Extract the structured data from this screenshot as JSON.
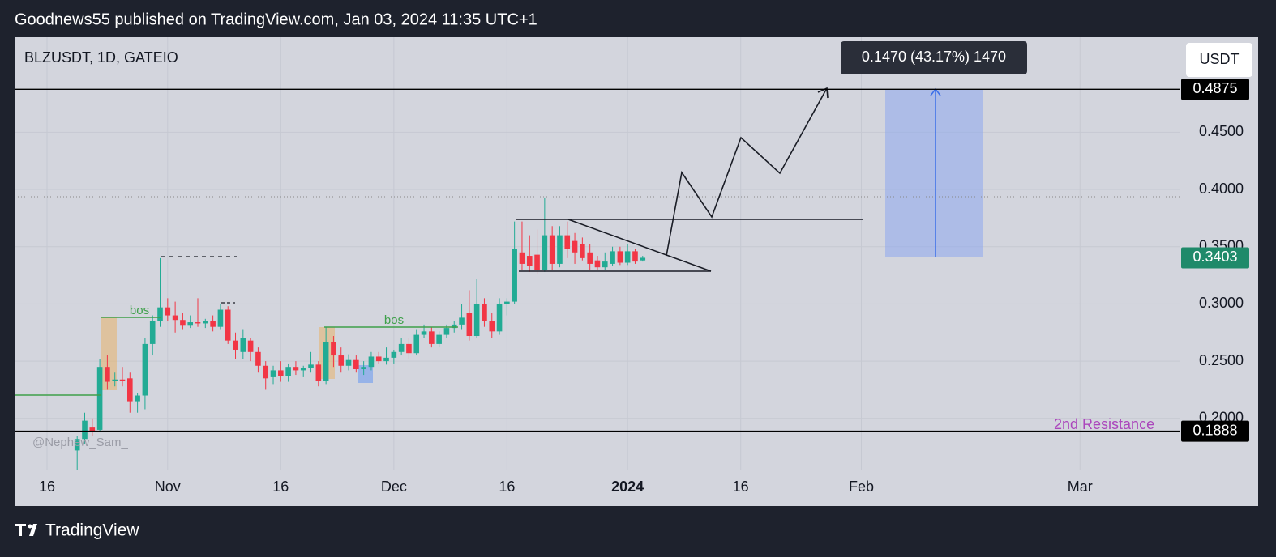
{
  "header": {
    "publisher": "Goodnews55 published on TradingView.com, Jan 03, 2024 11:35 UTC+1"
  },
  "chart_data": {
    "type": "candlestick",
    "title": "BLZUSDT, 1D, GATEIO",
    "currency_button": "USDT",
    "x": [
      4,
      5,
      6,
      7,
      8,
      9,
      10,
      11,
      12,
      13,
      14,
      15,
      16,
      17,
      18,
      19,
      20,
      21,
      22,
      23,
      24,
      25,
      26,
      27,
      28,
      29,
      30,
      31,
      32,
      33,
      34,
      35,
      36,
      37,
      38,
      39,
      40,
      41,
      42,
      43,
      44,
      45,
      46,
      47,
      48,
      49,
      50,
      51,
      52,
      53,
      54,
      55,
      56,
      57,
      58,
      59,
      60,
      61,
      62,
      63,
      64,
      65,
      66,
      67,
      68,
      69,
      70,
      71,
      72,
      73,
      74,
      75,
      76,
      77,
      78,
      79
    ],
    "open": [
      0.172,
      0.182,
      0.192,
      0.19,
      0.245,
      0.233,
      0.234,
      0.235,
      0.215,
      0.22,
      0.265,
      0.285,
      0.297,
      0.29,
      0.286,
      0.281,
      0.284,
      0.283,
      0.285,
      0.28,
      0.295,
      0.268,
      0.258,
      0.268,
      0.258,
      0.246,
      0.236,
      0.242,
      0.237,
      0.245,
      0.242,
      0.244,
      0.247,
      0.233,
      0.267,
      0.255,
      0.246,
      0.251,
      0.243,
      0.245,
      0.254,
      0.25,
      0.253,
      0.258,
      0.265,
      0.257,
      0.273,
      0.276,
      0.265,
      0.273,
      0.279,
      0.282,
      0.292,
      0.272,
      0.3,
      0.285,
      0.276,
      0.3,
      0.302,
      0.345,
      0.342,
      0.343,
      0.33,
      0.36,
      0.335,
      0.36,
      0.355,
      0.352,
      0.345,
      0.338,
      0.332,
      0.335,
      0.346,
      0.336,
      0.346,
      0.338
    ],
    "high": [
      0.185,
      0.205,
      0.2,
      0.252,
      0.255,
      0.24,
      0.245,
      0.24,
      0.222,
      0.27,
      0.29,
      0.34,
      0.305,
      0.302,
      0.292,
      0.29,
      0.305,
      0.287,
      0.29,
      0.3,
      0.298,
      0.275,
      0.278,
      0.27,
      0.262,
      0.25,
      0.246,
      0.25,
      0.248,
      0.25,
      0.246,
      0.258,
      0.25,
      0.28,
      0.272,
      0.262,
      0.256,
      0.255,
      0.25,
      0.258,
      0.258,
      0.262,
      0.26,
      0.27,
      0.27,
      0.278,
      0.282,
      0.28,
      0.276,
      0.282,
      0.285,
      0.3,
      0.312,
      0.322,
      0.305,
      0.292,
      0.305,
      0.305,
      0.372,
      0.372,
      0.36,
      0.365,
      0.393,
      0.368,
      0.368,
      0.372,
      0.362,
      0.358,
      0.352,
      0.342,
      0.345,
      0.35,
      0.35,
      0.352,
      0.348,
      0.342
    ],
    "low": [
      0.155,
      0.178,
      0.185,
      0.188,
      0.225,
      0.228,
      0.228,
      0.205,
      0.205,
      0.208,
      0.255,
      0.28,
      0.285,
      0.275,
      0.278,
      0.279,
      0.28,
      0.279,
      0.276,
      0.278,
      0.265,
      0.252,
      0.252,
      0.25,
      0.24,
      0.225,
      0.23,
      0.232,
      0.232,
      0.238,
      0.236,
      0.24,
      0.228,
      0.23,
      0.245,
      0.24,
      0.242,
      0.24,
      0.238,
      0.242,
      0.248,
      0.247,
      0.248,
      0.255,
      0.252,
      0.255,
      0.27,
      0.262,
      0.262,
      0.27,
      0.275,
      0.278,
      0.268,
      0.27,
      0.28,
      0.27,
      0.273,
      0.29,
      0.3,
      0.33,
      0.328,
      0.326,
      0.328,
      0.33,
      0.332,
      0.34,
      0.335,
      0.338,
      0.33,
      0.33,
      0.33,
      0.333,
      0.334,
      0.334,
      0.335,
      0.337
    ],
    "close": [
      0.182,
      0.198,
      0.188,
      0.245,
      0.232,
      0.234,
      0.233,
      0.215,
      0.22,
      0.265,
      0.285,
      0.297,
      0.29,
      0.286,
      0.281,
      0.284,
      0.283,
      0.285,
      0.28,
      0.295,
      0.268,
      0.26,
      0.27,
      0.258,
      0.246,
      0.235,
      0.242,
      0.237,
      0.245,
      0.242,
      0.244,
      0.247,
      0.233,
      0.267,
      0.255,
      0.246,
      0.251,
      0.243,
      0.245,
      0.254,
      0.25,
      0.253,
      0.258,
      0.265,
      0.257,
      0.273,
      0.276,
      0.265,
      0.273,
      0.279,
      0.282,
      0.288,
      0.272,
      0.3,
      0.285,
      0.276,
      0.3,
      0.302,
      0.348,
      0.335,
      0.333,
      0.33,
      0.36,
      0.335,
      0.36,
      0.348,
      0.345,
      0.34,
      0.335,
      0.332,
      0.337,
      0.346,
      0.336,
      0.346,
      0.337,
      0.3403
    ],
    "up_color": "#22ab94",
    "down_color": "#f23645",
    "xlim": [
      -4.3,
      150.2
    ],
    "xticks": [
      {
        "value": 0,
        "label": "16"
      },
      {
        "value": 16,
        "label": "Nov"
      },
      {
        "value": 31,
        "label": "16"
      },
      {
        "value": 46,
        "label": "Dec"
      },
      {
        "value": 61,
        "label": "16"
      },
      {
        "value": 77,
        "label": "2024"
      },
      {
        "value": 92,
        "label": "16"
      },
      {
        "value": 108,
        "label": "Feb"
      },
      {
        "value": 137,
        "label": "Mar"
      }
    ],
    "ylim": [
      0.1553,
      0.533
    ],
    "yticks": [
      {
        "value": 0.2,
        "label": "0.2000"
      },
      {
        "value": 0.25,
        "label": "0.2500"
      },
      {
        "value": 0.3,
        "label": "0.3000"
      },
      {
        "value": 0.35,
        "label": "0.3500"
      },
      {
        "value": 0.4,
        "label": "0.4000"
      },
      {
        "value": 0.45,
        "label": "0.4500"
      }
    ],
    "grid": true,
    "price_lines": [
      {
        "value": 0.4875,
        "label": "0.4875",
        "color": "#000000",
        "line": true
      },
      {
        "value": 0.3403,
        "label": "0.3403",
        "color": "#1f8a6a",
        "line": false
      },
      {
        "value": 0.1888,
        "label": "0.1888",
        "color": "#000000",
        "line": true
      }
    ],
    "measure_label": "0.1470 (43.17%) 1470",
    "annotations": {
      "bos": [
        "bos",
        "bos"
      ],
      "resistance": "2nd Resistance",
      "watermark": "@Nephew_Sam_"
    }
  },
  "footer": {
    "brand": "TradingView"
  }
}
